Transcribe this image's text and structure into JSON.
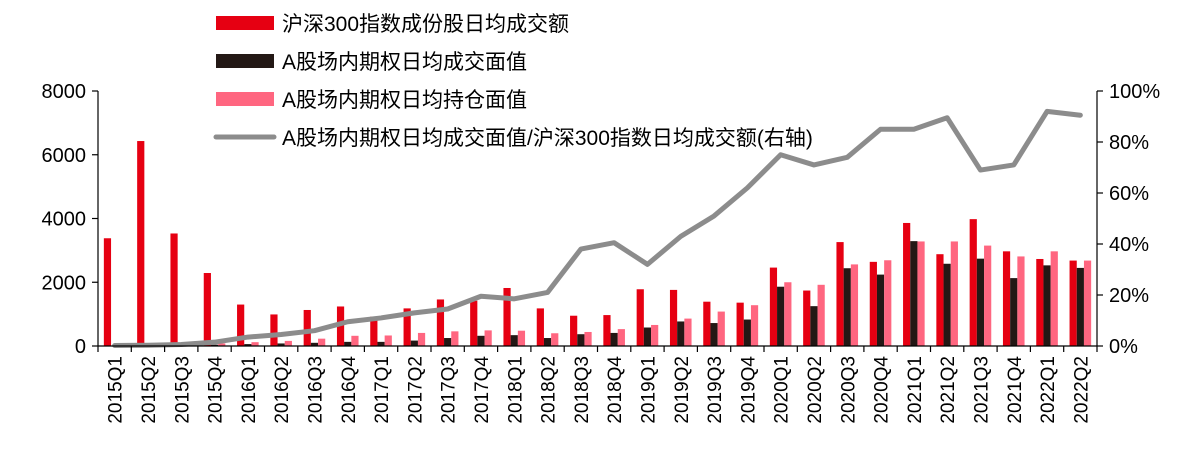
{
  "chart_data": {
    "type": "bar",
    "categories": [
      "2015Q1",
      "2015Q2",
      "2015Q3",
      "2015Q4",
      "2016Q1",
      "2016Q2",
      "2016Q3",
      "2016Q4",
      "2017Q1",
      "2017Q2",
      "2017Q3",
      "2017Q4",
      "2018Q1",
      "2018Q2",
      "2018Q3",
      "2018Q4",
      "2019Q1",
      "2019Q2",
      "2019Q3",
      "2019Q4",
      "2020Q1",
      "2020Q2",
      "2020Q3",
      "2020Q4",
      "2021Q1",
      "2021Q2",
      "2021Q3",
      "2021Q4",
      "2022Q1",
      "2022Q2"
    ],
    "series": [
      {
        "name": "沪深300指数成份股日均成交额",
        "kind": "bar",
        "axis": "left",
        "color": "#e60012",
        "values": [
          3380,
          6430,
          3530,
          2290,
          1300,
          990,
          1130,
          1240,
          920,
          1180,
          1460,
          1420,
          1820,
          1180,
          950,
          970,
          1780,
          1760,
          1390,
          1360,
          2460,
          1740,
          3260,
          2640,
          3860,
          2880,
          3980,
          2970,
          2730,
          2680
        ]
      },
      {
        "name": "A股场内期权日均成交面值",
        "kind": "bar",
        "axis": "left",
        "color": "#231815",
        "values": [
          5,
          15,
          20,
          40,
          60,
          80,
          100,
          130,
          130,
          170,
          250,
          320,
          340,
          250,
          370,
          410,
          580,
          770,
          720,
          830,
          1860,
          1250,
          2440,
          2240,
          3290,
          2580,
          2740,
          2130,
          2530,
          2450
        ]
      },
      {
        "name": "A股场内期权日均持仓面值",
        "kind": "bar",
        "axis": "left",
        "color": "#ff6680",
        "values": [
          10,
          30,
          50,
          80,
          120,
          160,
          230,
          320,
          330,
          410,
          460,
          490,
          480,
          400,
          440,
          530,
          660,
          860,
          1080,
          1280,
          2000,
          1920,
          2560,
          2690,
          3280,
          3280,
          3150,
          2810,
          2970,
          2680
        ]
      },
      {
        "name": "A股场内期权日均成交面值/沪深300指数日均成交额(右轴)",
        "kind": "line",
        "axis": "right",
        "color": "#8c8c8c",
        "values": [
          0.2,
          0.3,
          0.6,
          1.5,
          3.5,
          4.5,
          6,
          9.5,
          11,
          13,
          14.5,
          19.5,
          18.5,
          21,
          38,
          40.5,
          32,
          43,
          51,
          62,
          75,
          71,
          74,
          85,
          85,
          89.5,
          69,
          71,
          92,
          90.5
        ]
      }
    ],
    "yleft": {
      "min": 0,
      "max": 8000,
      "ticks": [
        "0",
        "2000",
        "4000",
        "6000",
        "8000"
      ]
    },
    "yright": {
      "min": 0,
      "max": 100,
      "ticks": [
        "0%",
        "20%",
        "40%",
        "60%",
        "80%",
        "100%"
      ]
    },
    "grid": false,
    "legend_position": "top-center",
    "title": "",
    "xlabel": "",
    "ylabel": ""
  }
}
